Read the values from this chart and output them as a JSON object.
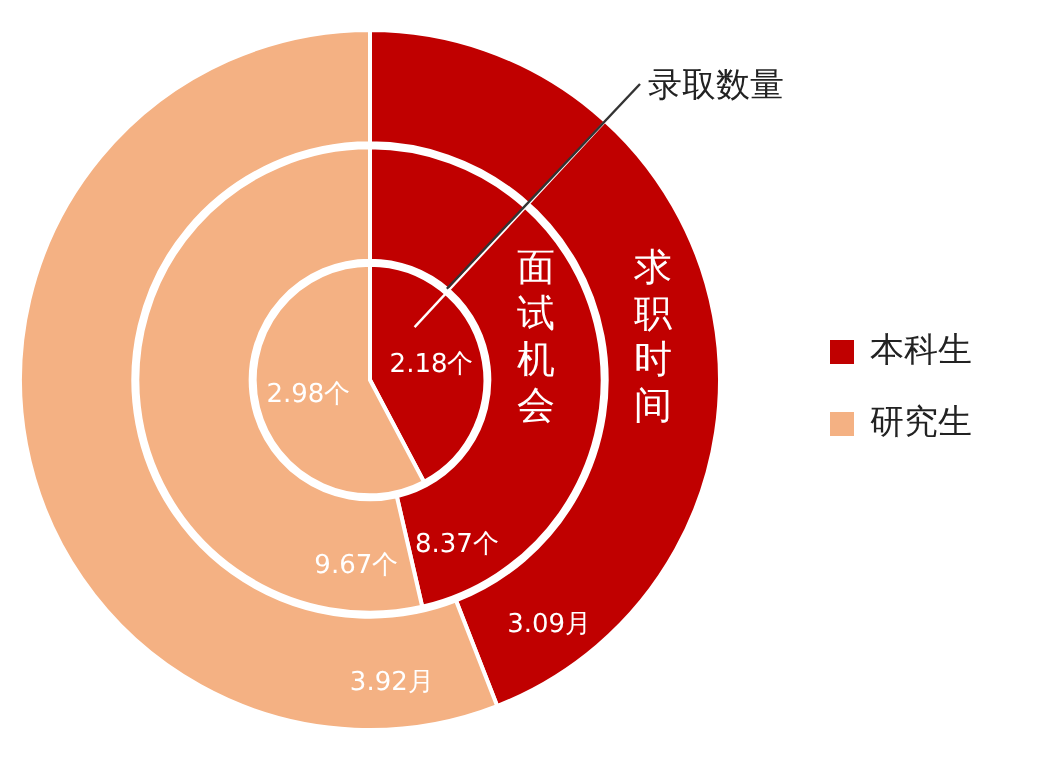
{
  "chart_data": {
    "type": "pie",
    "categories": [
      "本科生",
      "研究生"
    ],
    "colors": [
      "#c00000",
      "#f4b183"
    ],
    "series": [
      {
        "name": "录取数量",
        "values": [
          2.18,
          2.98
        ],
        "value_labels": [
          "2.18个",
          "2.98个"
        ]
      },
      {
        "name": "面试机会",
        "values": [
          8.37,
          9.67
        ],
        "value_labels": [
          "8.37个",
          "9.67个"
        ]
      },
      {
        "name": "求职时间",
        "values": [
          3.09,
          3.92
        ],
        "value_labels": [
          "3.09月",
          "3.92月"
        ]
      }
    ],
    "legend": "right"
  }
}
